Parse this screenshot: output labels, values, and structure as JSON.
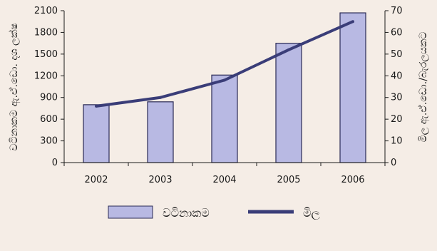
{
  "colors": {
    "background": "#f5ede6",
    "bar_fill": "#b8b9e3",
    "bar_stroke": "#2a2a55",
    "line": "#3a3d78",
    "axis": "#1a1a1a"
  },
  "chart_data": {
    "type": "bar",
    "categories": [
      "2002",
      "2003",
      "2004",
      "2005",
      "2006"
    ],
    "series": [
      {
        "name": "වටිනාකම",
        "type": "bar",
        "axis": "left",
        "values": [
          800,
          840,
          1210,
          1650,
          2070
        ]
      },
      {
        "name": "මිල",
        "type": "line",
        "axis": "right",
        "values": [
          26,
          30,
          38,
          52,
          65
        ]
      }
    ],
    "ylabel_left": "වටිනාකම ඇ.ඒ.ඩො. දශ ලක්ෂ",
    "ylabel_right": "මිල ඇ.ඒ.ඩො./බැරලයකට",
    "ylim_left": [
      0,
      2100
    ],
    "yticks_left": [
      "0",
      "300",
      "600",
      "900",
      "1200",
      "1500",
      "1800",
      "2100"
    ],
    "ylim_right": [
      0,
      70
    ],
    "yticks_right": [
      "0",
      "10",
      "20",
      "30",
      "40",
      "50",
      "60",
      "70"
    ],
    "legend_position": "bottom",
    "grid": false
  }
}
